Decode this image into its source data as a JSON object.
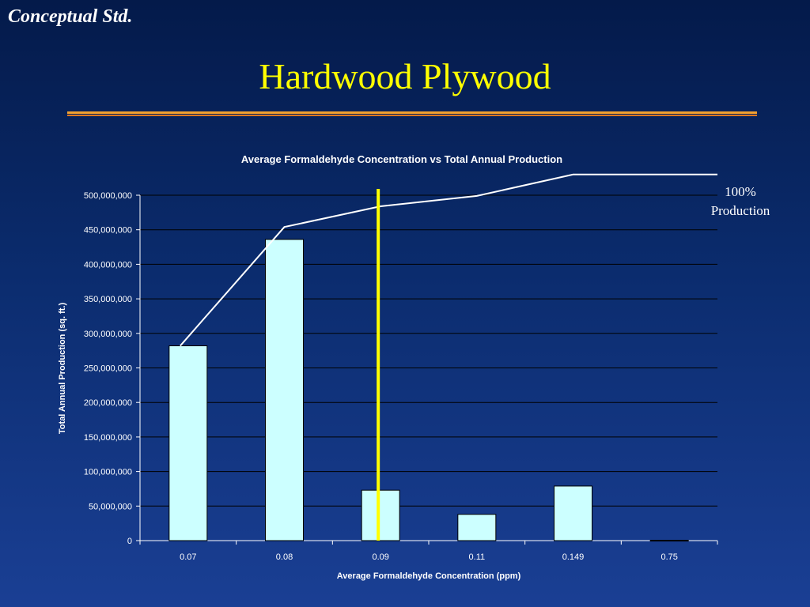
{
  "slide": {
    "corner_label": "Conceptual Std.",
    "title": "Hardwood Plywood"
  },
  "annotation": {
    "line1": "100%",
    "line2": "Production"
  },
  "colors": {
    "title": "#ffff00",
    "bar_fill": "#ccffff",
    "threshold_line": "#ffff00",
    "cumulative_line": "#ffffff",
    "rule_top": "#f0a030",
    "rule_bottom": "#e07820"
  },
  "chart_data": {
    "type": "bar",
    "title": "Average Formaldehyde Concentration vs Total Annual Production",
    "xlabel": "Average Formaldehyde Concentration (ppm)",
    "ylabel": "Total Annual Production (sq. ft.)",
    "categories": [
      "0.07",
      "0.08",
      "0.09",
      "0.11",
      "0.149",
      "0.75"
    ],
    "series": [
      {
        "values": [
          282000000,
          436000000,
          73000000,
          38000000,
          79000000,
          500000
        ]
      }
    ],
    "cumulative_line": [
      282000000,
      454000000,
      484000000,
      499000000,
      530000000,
      530000000
    ],
    "threshold_x": "0.09",
    "ylim": [
      0,
      500000000
    ],
    "yticks": [
      "0",
      "50,000,000",
      "100,000,000",
      "150,000,000",
      "200,000,000",
      "250,000,000",
      "300,000,000",
      "350,000,000",
      "400,000,000",
      "450,000,000",
      "500,000,000"
    ],
    "grid": true,
    "legend": "none"
  }
}
